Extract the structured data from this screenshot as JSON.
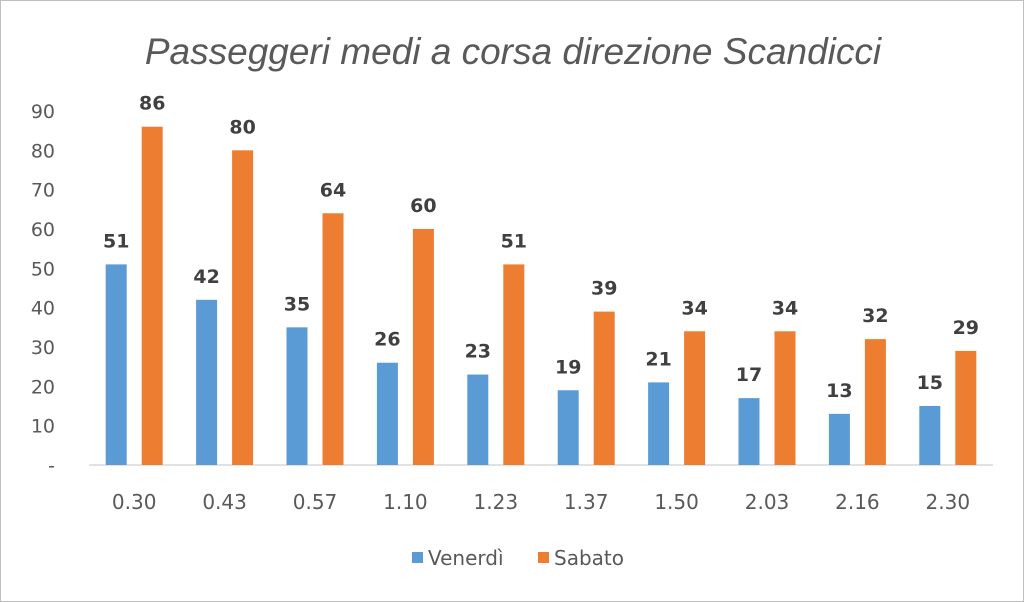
{
  "chart_data": {
    "type": "bar",
    "title": "Passeggeri medi a corsa direzione Scandicci",
    "xlabel": "",
    "ylabel": "",
    "ylim": [
      0,
      90
    ],
    "yticks": [
      "-",
      "10",
      "20",
      "30",
      "40",
      "50",
      "60",
      "70",
      "80",
      "90"
    ],
    "categories": [
      "0.30",
      "0.43",
      "0.57",
      "1.10",
      "1.23",
      "1.37",
      "1.50",
      "2.03",
      "2.16",
      "2.30"
    ],
    "series": [
      {
        "name": "Venerdì",
        "color": "#5B9BD5",
        "values": [
          51,
          42,
          35,
          26,
          23,
          19,
          21,
          17,
          13,
          15
        ]
      },
      {
        "name": "Sabato",
        "color": "#ED7D31",
        "values": [
          86,
          80,
          64,
          60,
          51,
          39,
          34,
          34,
          32,
          29
        ]
      }
    ],
    "data_labels": true,
    "grid": false,
    "legend_position": "bottom"
  }
}
